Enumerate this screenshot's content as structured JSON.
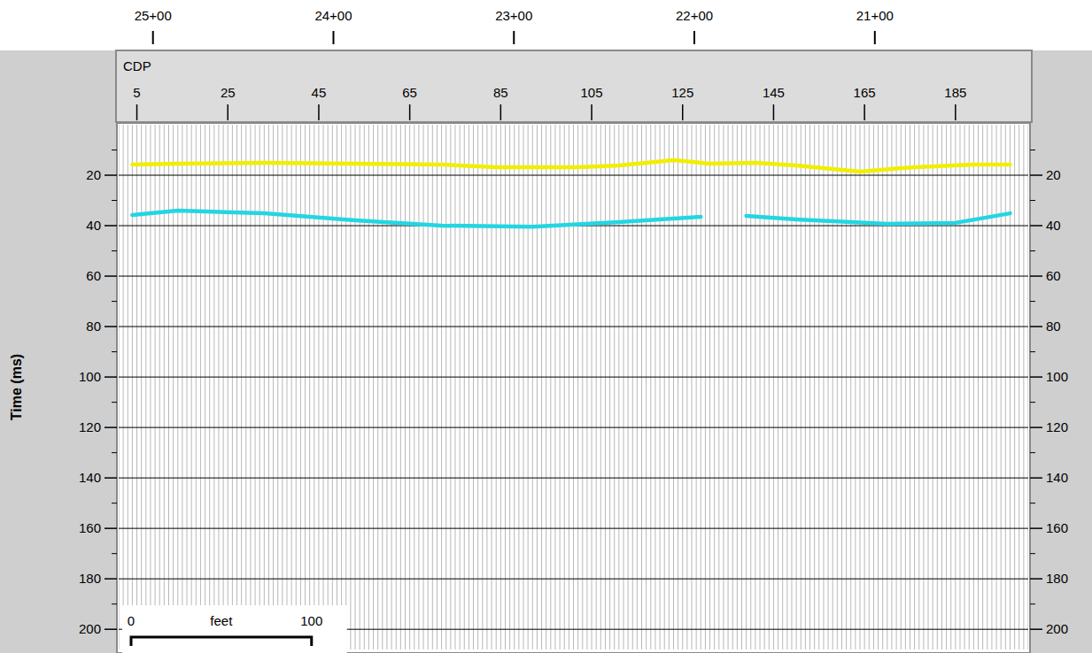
{
  "chart_data": {
    "type": "line",
    "x_label": "CDP",
    "y_label": "Time (ms)",
    "xlim": [
      1,
      201
    ],
    "xticks": [
      5,
      25,
      45,
      65,
      85,
      105,
      125,
      145,
      165,
      185
    ],
    "x2lim": [
      2519,
      2015
    ],
    "x2ticks": [
      {
        "value": 2500,
        "label": "25+00"
      },
      {
        "value": 2400,
        "label": "24+00"
      },
      {
        "value": 2300,
        "label": "23+00"
      },
      {
        "value": 2200,
        "label": "22+00"
      },
      {
        "value": 2100,
        "label": "21+00"
      }
    ],
    "ylim": [
      208,
      0
    ],
    "yticks": [
      20,
      40,
      60,
      80,
      100,
      120,
      140,
      160,
      180,
      200
    ],
    "grid": true,
    "series": [
      {
        "color": "#f2ee00",
        "line_style": "solid",
        "x": [
          4,
          14,
          33,
          53,
          72,
          84,
          102,
          111,
          119,
          123,
          131,
          141,
          150,
          158,
          164,
          176,
          189,
          197
        ],
        "values": [
          15.8,
          15.4,
          15.1,
          15.4,
          15.8,
          16.8,
          16.8,
          16.1,
          14.7,
          14.0,
          15.4,
          15.1,
          16.1,
          17.5,
          18.6,
          16.8,
          15.8,
          15.8
        ]
      },
      {
        "color": "#22d6e2",
        "line_style": "solid",
        "x": [
          4,
          14,
          33,
          53,
          72,
          92,
          111,
          129,
          134,
          139,
          150,
          170,
          185,
          197
        ],
        "values": [
          35.8,
          34.0,
          35.1,
          37.9,
          40.0,
          40.4,
          38.6,
          36.5,
          null,
          36.1,
          37.5,
          39.3,
          38.9,
          35.1
        ]
      }
    ],
    "scale_bar": {
      "label": "feet",
      "ticks": [
        0,
        100
      ]
    }
  }
}
